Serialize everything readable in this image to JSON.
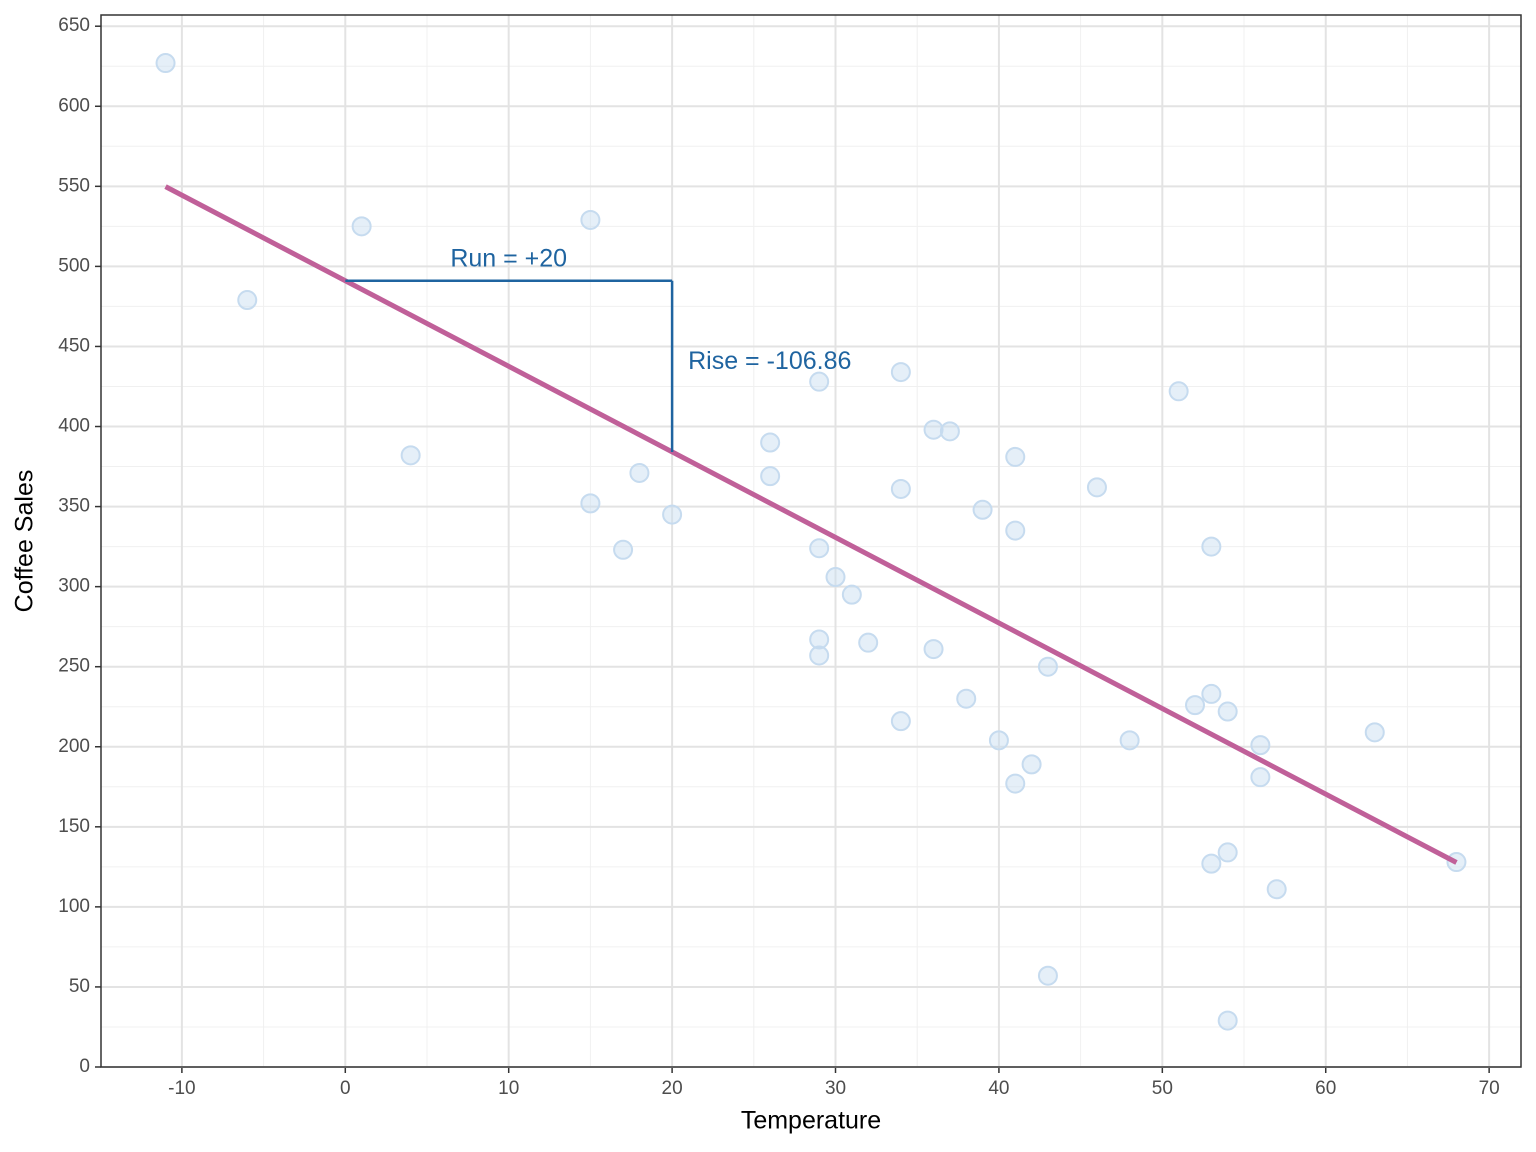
{
  "chart_data": {
    "type": "scatter",
    "x_label": "Temperature",
    "y_label": "Coffee Sales",
    "x": [
      -11,
      -6,
      1,
      4,
      15,
      15,
      17,
      18,
      20,
      26,
      26,
      29,
      29,
      29,
      29,
      30,
      31,
      32,
      34,
      34,
      34,
      36,
      36,
      37,
      38,
      39,
      40,
      41,
      41,
      41,
      42,
      43,
      43,
      46,
      48,
      51,
      52,
      53,
      53,
      53,
      54,
      54,
      54,
      56,
      56,
      57,
      63,
      68
    ],
    "values": [
      627,
      479,
      525,
      382,
      529,
      352,
      323,
      371,
      345,
      390,
      369,
      428,
      324,
      267,
      257,
      306,
      295,
      265,
      434,
      361,
      216,
      398,
      261,
      397,
      230,
      348,
      204,
      381,
      335,
      177,
      189,
      250,
      57,
      362,
      204,
      422,
      226,
      233,
      325,
      127,
      222,
      134,
      29,
      201,
      181,
      111,
      209,
      128
    ],
    "color": "#c6dbef",
    "fit_line": {
      "x": [
        -11,
        68
      ],
      "y": [
        549.8,
        127.7
      ],
      "color": "#c06099"
    },
    "annotations": [
      {
        "label": "Run = +20",
        "x": [
          0,
          20
        ],
        "y": [
          491,
          491
        ],
        "color": "#1f64a0"
      },
      {
        "label": "Rise = -106.86",
        "x": [
          20,
          20
        ],
        "y": [
          491,
          384.1
        ],
        "color": "#1f64a0"
      }
    ],
    "xlim": [
      -14.95,
      71.95
    ],
    "ylim": [
      0,
      657
    ],
    "xticks": [
      -10,
      0,
      10,
      20,
      30,
      40,
      50,
      60,
      70
    ],
    "yticks": [
      0,
      50,
      100,
      150,
      200,
      250,
      300,
      350,
      400,
      450,
      500,
      550,
      600,
      650
    ],
    "grid": true,
    "minor_grid": true
  }
}
